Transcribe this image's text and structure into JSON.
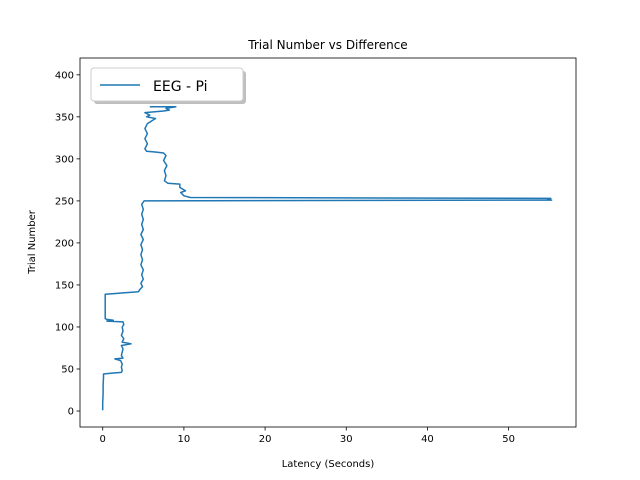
{
  "chart_data": {
    "type": "line",
    "title": "Trial Number vs Difference",
    "xlabel": "Latency (Seconds)",
    "ylabel": "Trial Number",
    "xlim": [
      -2.8,
      58.3
    ],
    "ylim": [
      -19,
      420
    ],
    "xticks": [
      0,
      10,
      20,
      30,
      40,
      50
    ],
    "yticks": [
      0,
      50,
      100,
      150,
      200,
      250,
      300,
      350,
      400
    ],
    "grid": false,
    "legend_position": "top-left",
    "series": [
      {
        "name": "EEG - Pi",
        "color": "#1f77b4",
        "points": [
          [
            0.0,
            1
          ],
          [
            0.0,
            10
          ],
          [
            0.05,
            20
          ],
          [
            0.05,
            30
          ],
          [
            0.1,
            40
          ],
          [
            0.1,
            44
          ],
          [
            1.0,
            45
          ],
          [
            2.3,
            46
          ],
          [
            2.4,
            48
          ],
          [
            2.3,
            52
          ],
          [
            2.4,
            56
          ],
          [
            2.2,
            60
          ],
          [
            1.5,
            62
          ],
          [
            2.5,
            63
          ],
          [
            2.3,
            66
          ],
          [
            2.4,
            70
          ],
          [
            2.5,
            74
          ],
          [
            2.3,
            78
          ],
          [
            3.5,
            80
          ],
          [
            2.4,
            82
          ],
          [
            2.6,
            86
          ],
          [
            2.3,
            90
          ],
          [
            2.5,
            95
          ],
          [
            2.4,
            100
          ],
          [
            2.6,
            103
          ],
          [
            2.5,
            106
          ],
          [
            0.5,
            107
          ],
          [
            1.3,
            108
          ],
          [
            0.5,
            109
          ],
          [
            0.3,
            110
          ],
          [
            0.3,
            120
          ],
          [
            0.3,
            130
          ],
          [
            0.3,
            139
          ],
          [
            1.8,
            140
          ],
          [
            4.4,
            142
          ],
          [
            4.6,
            145
          ],
          [
            4.9,
            148
          ],
          [
            4.7,
            152
          ],
          [
            5.0,
            157
          ],
          [
            4.8,
            162
          ],
          [
            5.0,
            168
          ],
          [
            4.7,
            174
          ],
          [
            4.9,
            180
          ],
          [
            4.7,
            186
          ],
          [
            4.9,
            192
          ],
          [
            4.7,
            198
          ],
          [
            5.0,
            204
          ],
          [
            4.7,
            210
          ],
          [
            5.0,
            216
          ],
          [
            4.8,
            222
          ],
          [
            5.0,
            228
          ],
          [
            4.8,
            234
          ],
          [
            5.0,
            240
          ],
          [
            4.8,
            246
          ],
          [
            5.1,
            250
          ],
          [
            55.3,
            251
          ],
          [
            54.8,
            252
          ],
          [
            55.2,
            253
          ],
          [
            10.8,
            254
          ],
          [
            10.0,
            256
          ],
          [
            9.6,
            260
          ],
          [
            10.2,
            262
          ],
          [
            9.5,
            266
          ],
          [
            9.5,
            270
          ],
          [
            8.0,
            271
          ],
          [
            7.6,
            274
          ],
          [
            7.8,
            280
          ],
          [
            7.6,
            286
          ],
          [
            7.9,
            292
          ],
          [
            7.5,
            298
          ],
          [
            7.8,
            304
          ],
          [
            7.5,
            307
          ],
          [
            6.6,
            308
          ],
          [
            5.4,
            309
          ],
          [
            5.2,
            312
          ],
          [
            5.5,
            318
          ],
          [
            5.2,
            324
          ],
          [
            5.5,
            330
          ],
          [
            5.2,
            336
          ],
          [
            5.5,
            342
          ],
          [
            6.5,
            348
          ],
          [
            5.4,
            350
          ],
          [
            5.8,
            352
          ],
          [
            5.2,
            355
          ],
          [
            7.5,
            357
          ],
          [
            8.2,
            358
          ],
          [
            7.8,
            360
          ],
          [
            9.0,
            362
          ],
          [
            5.8,
            362
          ]
        ]
      }
    ]
  }
}
